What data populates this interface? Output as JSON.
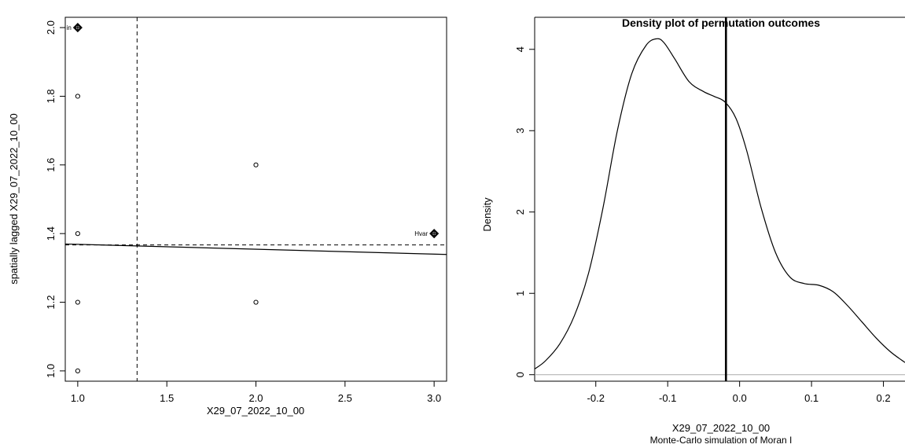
{
  "chart_data": [
    {
      "type": "scatter",
      "title": "",
      "xlabel": "X29_07_2022_10_00",
      "ylabel": "spatially lagged X29_07_2022_10_00",
      "xlim": [
        0.93,
        3.07
      ],
      "ylim": [
        0.97,
        2.03
      ],
      "xticks": [
        1.0,
        1.5,
        2.0,
        2.5,
        3.0
      ],
      "xtick_labels": [
        "1.0",
        "1.5",
        "2.0",
        "2.5",
        "3.0"
      ],
      "yticks": [
        1.0,
        1.2,
        1.4,
        1.6,
        1.8,
        2.0
      ],
      "ytick_labels": [
        "1.0",
        "1.2",
        "1.4",
        "1.6",
        "1.8",
        "2.0"
      ],
      "points": [
        {
          "x": 1.0,
          "y": 2.0,
          "influential": true,
          "label": "in"
        },
        {
          "x": 1.0,
          "y": 1.8
        },
        {
          "x": 1.0,
          "y": 1.4
        },
        {
          "x": 1.0,
          "y": 1.2
        },
        {
          "x": 1.0,
          "y": 1.0
        },
        {
          "x": 2.0,
          "y": 1.6
        },
        {
          "x": 2.0,
          "y": 1.2
        },
        {
          "x": 3.0,
          "y": 1.4,
          "influential": true,
          "label": "Hvar"
        }
      ],
      "mean_x": 1.333,
      "mean_y": 1.367,
      "regression": {
        "intercept": 1.383,
        "slope": -0.0143
      },
      "grid": false
    },
    {
      "type": "line",
      "title": "Density plot of permutation outcomes",
      "xlabel": "X29_07_2022_10_00",
      "subtitle": "Monte-Carlo simulation of Moran I",
      "ylabel": "Density",
      "xlim": [
        -0.285,
        0.23
      ],
      "ylim": [
        -0.08,
        4.22
      ],
      "xticks": [
        -0.2,
        -0.1,
        0.0,
        0.1,
        0.2
      ],
      "xtick_labels": [
        "-0.2",
        "-0.1",
        "0.0",
        "0.1",
        "0.2"
      ],
      "yticks": [
        0,
        1,
        2,
        3,
        4
      ],
      "ytick_labels": [
        "0",
        "1",
        "2",
        "3",
        "4"
      ],
      "density": {
        "x": [
          -0.285,
          -0.27,
          -0.25,
          -0.23,
          -0.21,
          -0.19,
          -0.17,
          -0.15,
          -0.13,
          -0.115,
          -0.105,
          -0.09,
          -0.07,
          -0.05,
          -0.035,
          -0.02,
          -0.005,
          0.01,
          0.03,
          0.05,
          0.07,
          0.09,
          0.11,
          0.13,
          0.15,
          0.17,
          0.19,
          0.21,
          0.23
        ],
        "y": [
          0.07,
          0.17,
          0.38,
          0.72,
          1.25,
          2.05,
          3.0,
          3.7,
          4.05,
          4.13,
          4.08,
          3.88,
          3.6,
          3.48,
          3.42,
          3.35,
          3.15,
          2.75,
          2.05,
          1.5,
          1.2,
          1.12,
          1.1,
          1.02,
          0.85,
          0.65,
          0.45,
          0.28,
          0.15
        ]
      },
      "observed_statistic": -0.019,
      "baseline": 0,
      "grid": false
    }
  ]
}
